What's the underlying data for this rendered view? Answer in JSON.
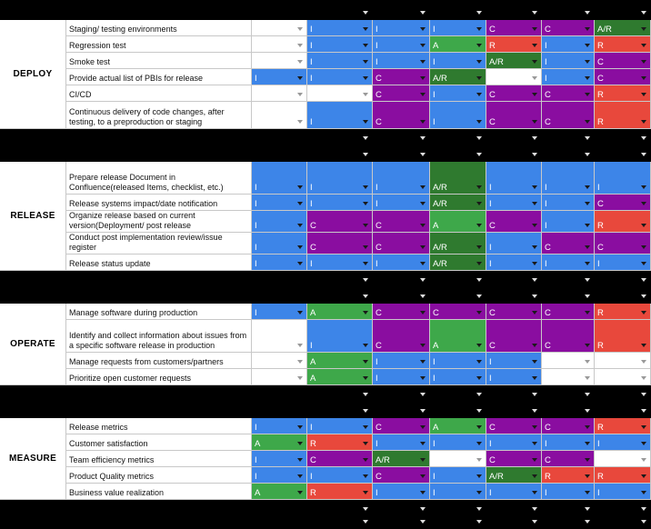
{
  "colors": {
    "I": "#3d85e8",
    "C": "#8a0da0",
    "A": "#3ea84a",
    "A/R": "#2f7a2f",
    "R": "#e8483c",
    "blank": "#ffffff",
    "black": "#000000"
  },
  "grid": {
    "rows": [
      {
        "type": "black",
        "cells": [
          "K",
          "K",
          "K",
          "K",
          "K",
          "K"
        ]
      },
      {
        "type": "data",
        "section": "",
        "task": "Staging/ testing environments",
        "cells": [
          "W",
          "I",
          "I",
          "I",
          "C",
          "C",
          "A/R"
        ]
      },
      {
        "type": "data",
        "section": "",
        "task": "Regression test",
        "cells": [
          "W",
          "I",
          "I",
          "A",
          "R",
          "I",
          "R"
        ]
      },
      {
        "type": "data",
        "section": "DEPLOY",
        "task": "Smoke test",
        "cells": [
          "W",
          "I",
          "I",
          "I",
          "A/R",
          "I",
          "C"
        ]
      },
      {
        "type": "data",
        "section": "",
        "task": "Provide actual list of PBIs for release",
        "cells": [
          "I",
          "I",
          "C",
          "A/R",
          "W",
          "I",
          "C"
        ]
      },
      {
        "type": "data",
        "section": "",
        "task": "CI/CD",
        "cells": [
          "W",
          "W",
          "C",
          "I",
          "C",
          "C",
          "R"
        ]
      },
      {
        "type": "data",
        "section": "",
        "task": "Continuous delivery of code changes, after testing, to a preproduction or staging",
        "cells": [
          "W",
          "I",
          "C",
          "I",
          "C",
          "C",
          "R"
        ]
      },
      {
        "type": "black",
        "cells": [
          "K",
          "K",
          "K",
          "K",
          "K",
          "K"
        ]
      },
      {
        "type": "black",
        "cells": [
          "K",
          "K",
          "K",
          "K",
          "K",
          "K"
        ]
      },
      {
        "type": "data",
        "section": "",
        "task": "Prepare release Document in Confluence(released Items, checklist, etc.)",
        "cells": [
          "I",
          "I",
          "I",
          "A/R",
          "I",
          "I",
          "I"
        ]
      },
      {
        "type": "data",
        "section": "",
        "task": "Release systems impact/date notification",
        "cells": [
          "I",
          "I",
          "I",
          "A/R",
          "I",
          "I",
          "C"
        ]
      },
      {
        "type": "data",
        "section": "RELEASE",
        "task": "Organize release based on current version(Deployment/ post release",
        "cells": [
          "I",
          "C",
          "C",
          "A",
          "C",
          "I",
          "R"
        ]
      },
      {
        "type": "data",
        "section": "",
        "task": "Conduct post implementation review/issue register",
        "cells": [
          "I",
          "C",
          "C",
          "A/R",
          "I",
          "C",
          "C"
        ]
      },
      {
        "type": "data",
        "section": "",
        "task": "Release status update",
        "cells": [
          "I",
          "I",
          "I",
          "A/R",
          "I",
          "I",
          "I"
        ]
      },
      {
        "type": "black",
        "cells": [
          "K",
          "K",
          "K",
          "K",
          "K",
          "K"
        ]
      },
      {
        "type": "black",
        "cells": [
          "K",
          "K",
          "K",
          "K",
          "K",
          "K"
        ]
      },
      {
        "type": "data",
        "section": "",
        "task": "Manage software during production",
        "cells": [
          "I",
          "A",
          "C",
          "C",
          "C",
          "C",
          "R"
        ]
      },
      {
        "type": "data",
        "section": "OPERATE",
        "task": " Identify and collect information about issues from a specific software release in production",
        "cells": [
          "W",
          "I",
          "C",
          "A",
          "C",
          "C",
          "R"
        ]
      },
      {
        "type": "data",
        "section": "",
        "task": "Manage requests from customers/partners",
        "cells": [
          "W",
          "A",
          "I",
          "I",
          "I",
          "W",
          "W"
        ]
      },
      {
        "type": "data",
        "section": "",
        "task": "Prioritize open customer requests",
        "cells": [
          "W",
          "A",
          "I",
          "I",
          "I",
          "W",
          "W"
        ]
      },
      {
        "type": "black",
        "cells": [
          "K",
          "K",
          "K",
          "K",
          "K",
          "K"
        ]
      },
      {
        "type": "black",
        "cells": [
          "K",
          "K",
          "K",
          "K",
          "K",
          "K"
        ]
      },
      {
        "type": "data",
        "section": "",
        "task": "Release metrics",
        "cells": [
          "I",
          "I",
          "C",
          "A",
          "C",
          "C",
          "R"
        ]
      },
      {
        "type": "data",
        "section": "",
        "task": "Customer satisfaction",
        "cells": [
          "A",
          "R",
          "I",
          "I",
          "I",
          "I",
          "I"
        ]
      },
      {
        "type": "data",
        "section": "MEASURE",
        "task": "Team efficiency metrics",
        "cells": [
          "I",
          "C",
          "A/R",
          "W",
          "C",
          "C",
          "W"
        ]
      },
      {
        "type": "data",
        "section": "",
        "task": "Product Quality metrics",
        "cells": [
          "I",
          "I",
          "C",
          "I",
          "A/R",
          "R",
          "R"
        ]
      },
      {
        "type": "data",
        "section": "",
        "task": "Business value realization",
        "cells": [
          "A",
          "R",
          "I",
          "I",
          "I",
          "I",
          "I"
        ]
      },
      {
        "type": "black",
        "cells": [
          "K",
          "K",
          "K",
          "K",
          "K",
          "K"
        ]
      },
      {
        "type": "black",
        "cells": [
          "K",
          "K",
          "K",
          "K",
          "K",
          "K"
        ]
      }
    ]
  },
  "icons": {
    "dropdown": "dropdown-arrow-icon"
  }
}
